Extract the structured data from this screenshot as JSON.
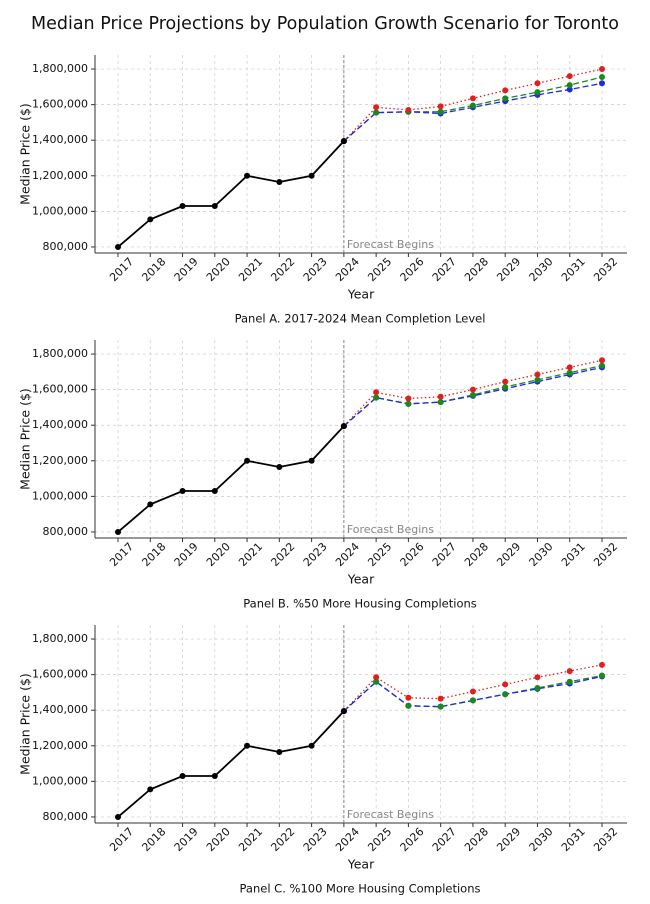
{
  "title": "Median Price Projections by Population Growth Scenario for Toronto",
  "chart_data": [
    {
      "type": "line",
      "caption": "Panel A. 2017-2024 Mean Completion Level",
      "x_label": "Year",
      "y_label": "Median Price ($)",
      "annotation": {
        "text": "Forecast Begins",
        "x": "2024"
      },
      "categories": [
        "2017",
        "2018",
        "2019",
        "2020",
        "2021",
        "2022",
        "2023",
        "2024",
        "2025",
        "2026",
        "2027",
        "2028",
        "2029",
        "2030",
        "2031",
        "2032"
      ],
      "ylim": [
        766000,
        1879000
      ],
      "yticks": [
        {
          "value": 800000,
          "label": "800,000"
        },
        {
          "value": 1000000,
          "label": "1,000,000"
        },
        {
          "value": 1200000,
          "label": "1,200,000"
        },
        {
          "value": 1400000,
          "label": "1,400,000"
        },
        {
          "value": 1600000,
          "label": "1,600,000"
        },
        {
          "value": 1800000,
          "label": "1,800,000"
        }
      ],
      "grid": true,
      "series": [
        {
          "color": "#000000",
          "dash": "solid",
          "values": [
            800000,
            955000,
            1030000,
            1030000,
            1200000,
            1165000,
            1200000,
            1395000,
            null,
            null,
            null,
            null,
            null,
            null,
            null,
            null
          ]
        },
        {
          "color": "#e02020",
          "dash": "dotted",
          "values": [
            null,
            null,
            null,
            null,
            null,
            null,
            null,
            1395000,
            1585000,
            1570000,
            1590000,
            1635000,
            1680000,
            1720000,
            1760000,
            1800000
          ]
        },
        {
          "color": "#1a8a1a",
          "dash": "dashed",
          "values": [
            null,
            null,
            null,
            null,
            null,
            null,
            null,
            1395000,
            1555000,
            1560000,
            1560000,
            1595000,
            1635000,
            1670000,
            1710000,
            1755000
          ]
        },
        {
          "color": "#1f2bdc",
          "dash": "dashed",
          "values": [
            null,
            null,
            null,
            null,
            null,
            null,
            null,
            1395000,
            1555000,
            1560000,
            1550000,
            1585000,
            1620000,
            1655000,
            1685000,
            1720000
          ]
        }
      ]
    },
    {
      "type": "line",
      "caption": "Panel B. %50 More Housing Completions",
      "x_label": "Year",
      "y_label": "Median Price ($)",
      "annotation": {
        "text": "Forecast Begins",
        "x": "2024"
      },
      "categories": [
        "2017",
        "2018",
        "2019",
        "2020",
        "2021",
        "2022",
        "2023",
        "2024",
        "2025",
        "2026",
        "2027",
        "2028",
        "2029",
        "2030",
        "2031",
        "2032"
      ],
      "ylim": [
        766000,
        1879000
      ],
      "yticks": [
        {
          "value": 800000,
          "label": "800,000"
        },
        {
          "value": 1000000,
          "label": "1,000,000"
        },
        {
          "value": 1200000,
          "label": "1,200,000"
        },
        {
          "value": 1400000,
          "label": "1,400,000"
        },
        {
          "value": 1600000,
          "label": "1,600,000"
        },
        {
          "value": 1800000,
          "label": "1,800,000"
        }
      ],
      "grid": true,
      "series": [
        {
          "color": "#000000",
          "dash": "solid",
          "values": [
            800000,
            955000,
            1030000,
            1030000,
            1200000,
            1165000,
            1200000,
            1395000,
            null,
            null,
            null,
            null,
            null,
            null,
            null,
            null
          ]
        },
        {
          "color": "#e02020",
          "dash": "dotted",
          "values": [
            null,
            null,
            null,
            null,
            null,
            null,
            null,
            1395000,
            1585000,
            1550000,
            1560000,
            1600000,
            1645000,
            1685000,
            1725000,
            1765000
          ]
        },
        {
          "color": "#1a8a1a",
          "dash": "dashed",
          "values": [
            null,
            null,
            null,
            null,
            null,
            null,
            null,
            1395000,
            1555000,
            1520000,
            1530000,
            1570000,
            1615000,
            1655000,
            1695000,
            1735000
          ]
        },
        {
          "color": "#1f2bdc",
          "dash": "dashed",
          "values": [
            null,
            null,
            null,
            null,
            null,
            null,
            null,
            1395000,
            1555000,
            1520000,
            1530000,
            1565000,
            1605000,
            1645000,
            1685000,
            1725000
          ]
        }
      ]
    },
    {
      "type": "line",
      "caption": "Panel C. %100 More Housing Completions",
      "x_label": "Year",
      "y_label": "Median Price ($)",
      "annotation": {
        "text": "Forecast Begins",
        "x": "2024"
      },
      "categories": [
        "2017",
        "2018",
        "2019",
        "2020",
        "2021",
        "2022",
        "2023",
        "2024",
        "2025",
        "2026",
        "2027",
        "2028",
        "2029",
        "2030",
        "2031",
        "2032"
      ],
      "ylim": [
        766000,
        1879000
      ],
      "yticks": [
        {
          "value": 800000,
          "label": "800,000"
        },
        {
          "value": 1000000,
          "label": "1,000,000"
        },
        {
          "value": 1200000,
          "label": "1,200,000"
        },
        {
          "value": 1400000,
          "label": "1,400,000"
        },
        {
          "value": 1600000,
          "label": "1,600,000"
        },
        {
          "value": 1800000,
          "label": "1,800,000"
        }
      ],
      "grid": true,
      "series": [
        {
          "color": "#000000",
          "dash": "solid",
          "values": [
            800000,
            955000,
            1030000,
            1030000,
            1200000,
            1165000,
            1200000,
            1395000,
            null,
            null,
            null,
            null,
            null,
            null,
            null,
            null
          ]
        },
        {
          "color": "#e02020",
          "dash": "dotted",
          "values": [
            null,
            null,
            null,
            null,
            null,
            null,
            null,
            1395000,
            1585000,
            1470000,
            1465000,
            1505000,
            1545000,
            1585000,
            1620000,
            1655000
          ]
        },
        {
          "color": "#1a8a1a",
          "dash": "dashed",
          "values": [
            null,
            null,
            null,
            null,
            null,
            null,
            null,
            1395000,
            1560000,
            1425000,
            1420000,
            1455000,
            1490000,
            1525000,
            1560000,
            1595000
          ]
        },
        {
          "color": "#1f2bdc",
          "dash": "dashed",
          "values": [
            null,
            null,
            null,
            null,
            null,
            null,
            null,
            1395000,
            1560000,
            1425000,
            1420000,
            1455000,
            1490000,
            1520000,
            1550000,
            1590000
          ]
        }
      ]
    }
  ]
}
